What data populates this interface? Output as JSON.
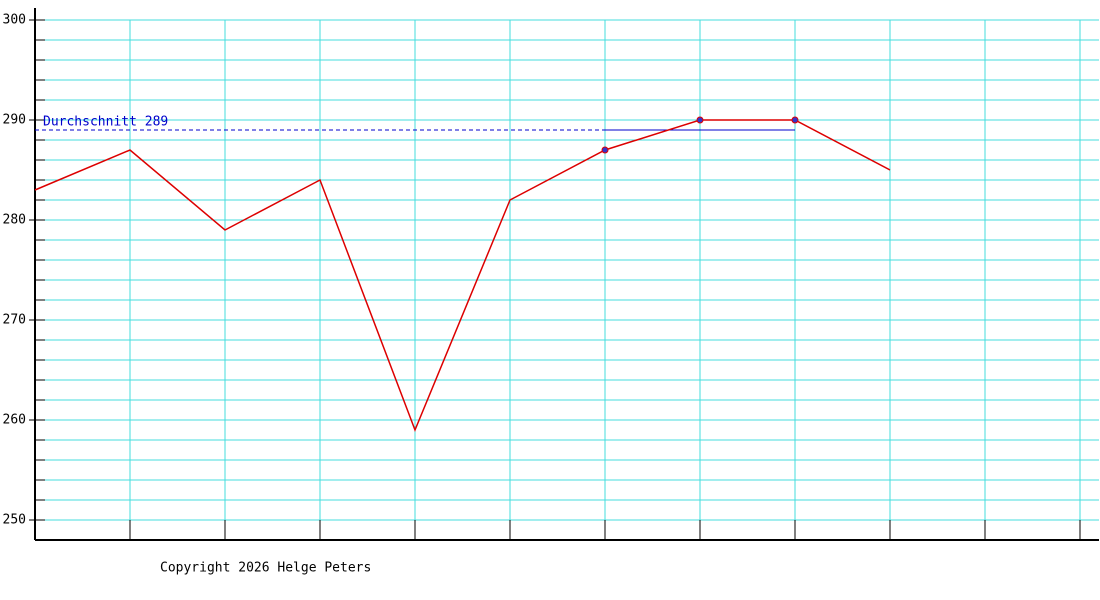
{
  "chart_data": {
    "type": "line",
    "x": [
      0,
      1,
      2,
      3,
      4,
      5,
      6,
      7,
      8,
      9
    ],
    "series": [
      {
        "color": "#dd0000",
        "values": [
          283,
          287,
          279,
          284,
          259,
          282,
          287,
          290,
          290,
          285
        ]
      }
    ],
    "highlight": [
      6,
      7,
      8
    ],
    "highlight_color": "#3333cc",
    "average": {
      "label": "Durchschnitt 289",
      "value": 289,
      "color": "#0000cc"
    },
    "xlim": [
      0,
      11.2
    ],
    "xticks": [
      1,
      2,
      3,
      4,
      5,
      6,
      7,
      8,
      9,
      10,
      11
    ],
    "ylim": [
      248,
      301.2
    ],
    "yticks": [
      250,
      260,
      270,
      280,
      290,
      300
    ],
    "ygrid": [
      250,
      252,
      254,
      256,
      258,
      260,
      262,
      264,
      266,
      268,
      270,
      272,
      274,
      276,
      278,
      280,
      282,
      284,
      286,
      288,
      290,
      292,
      294,
      296,
      298,
      300
    ],
    "grid": true,
    "grid_color": "#44dddd",
    "footer": "Copyright 2026 Helge Peters"
  }
}
